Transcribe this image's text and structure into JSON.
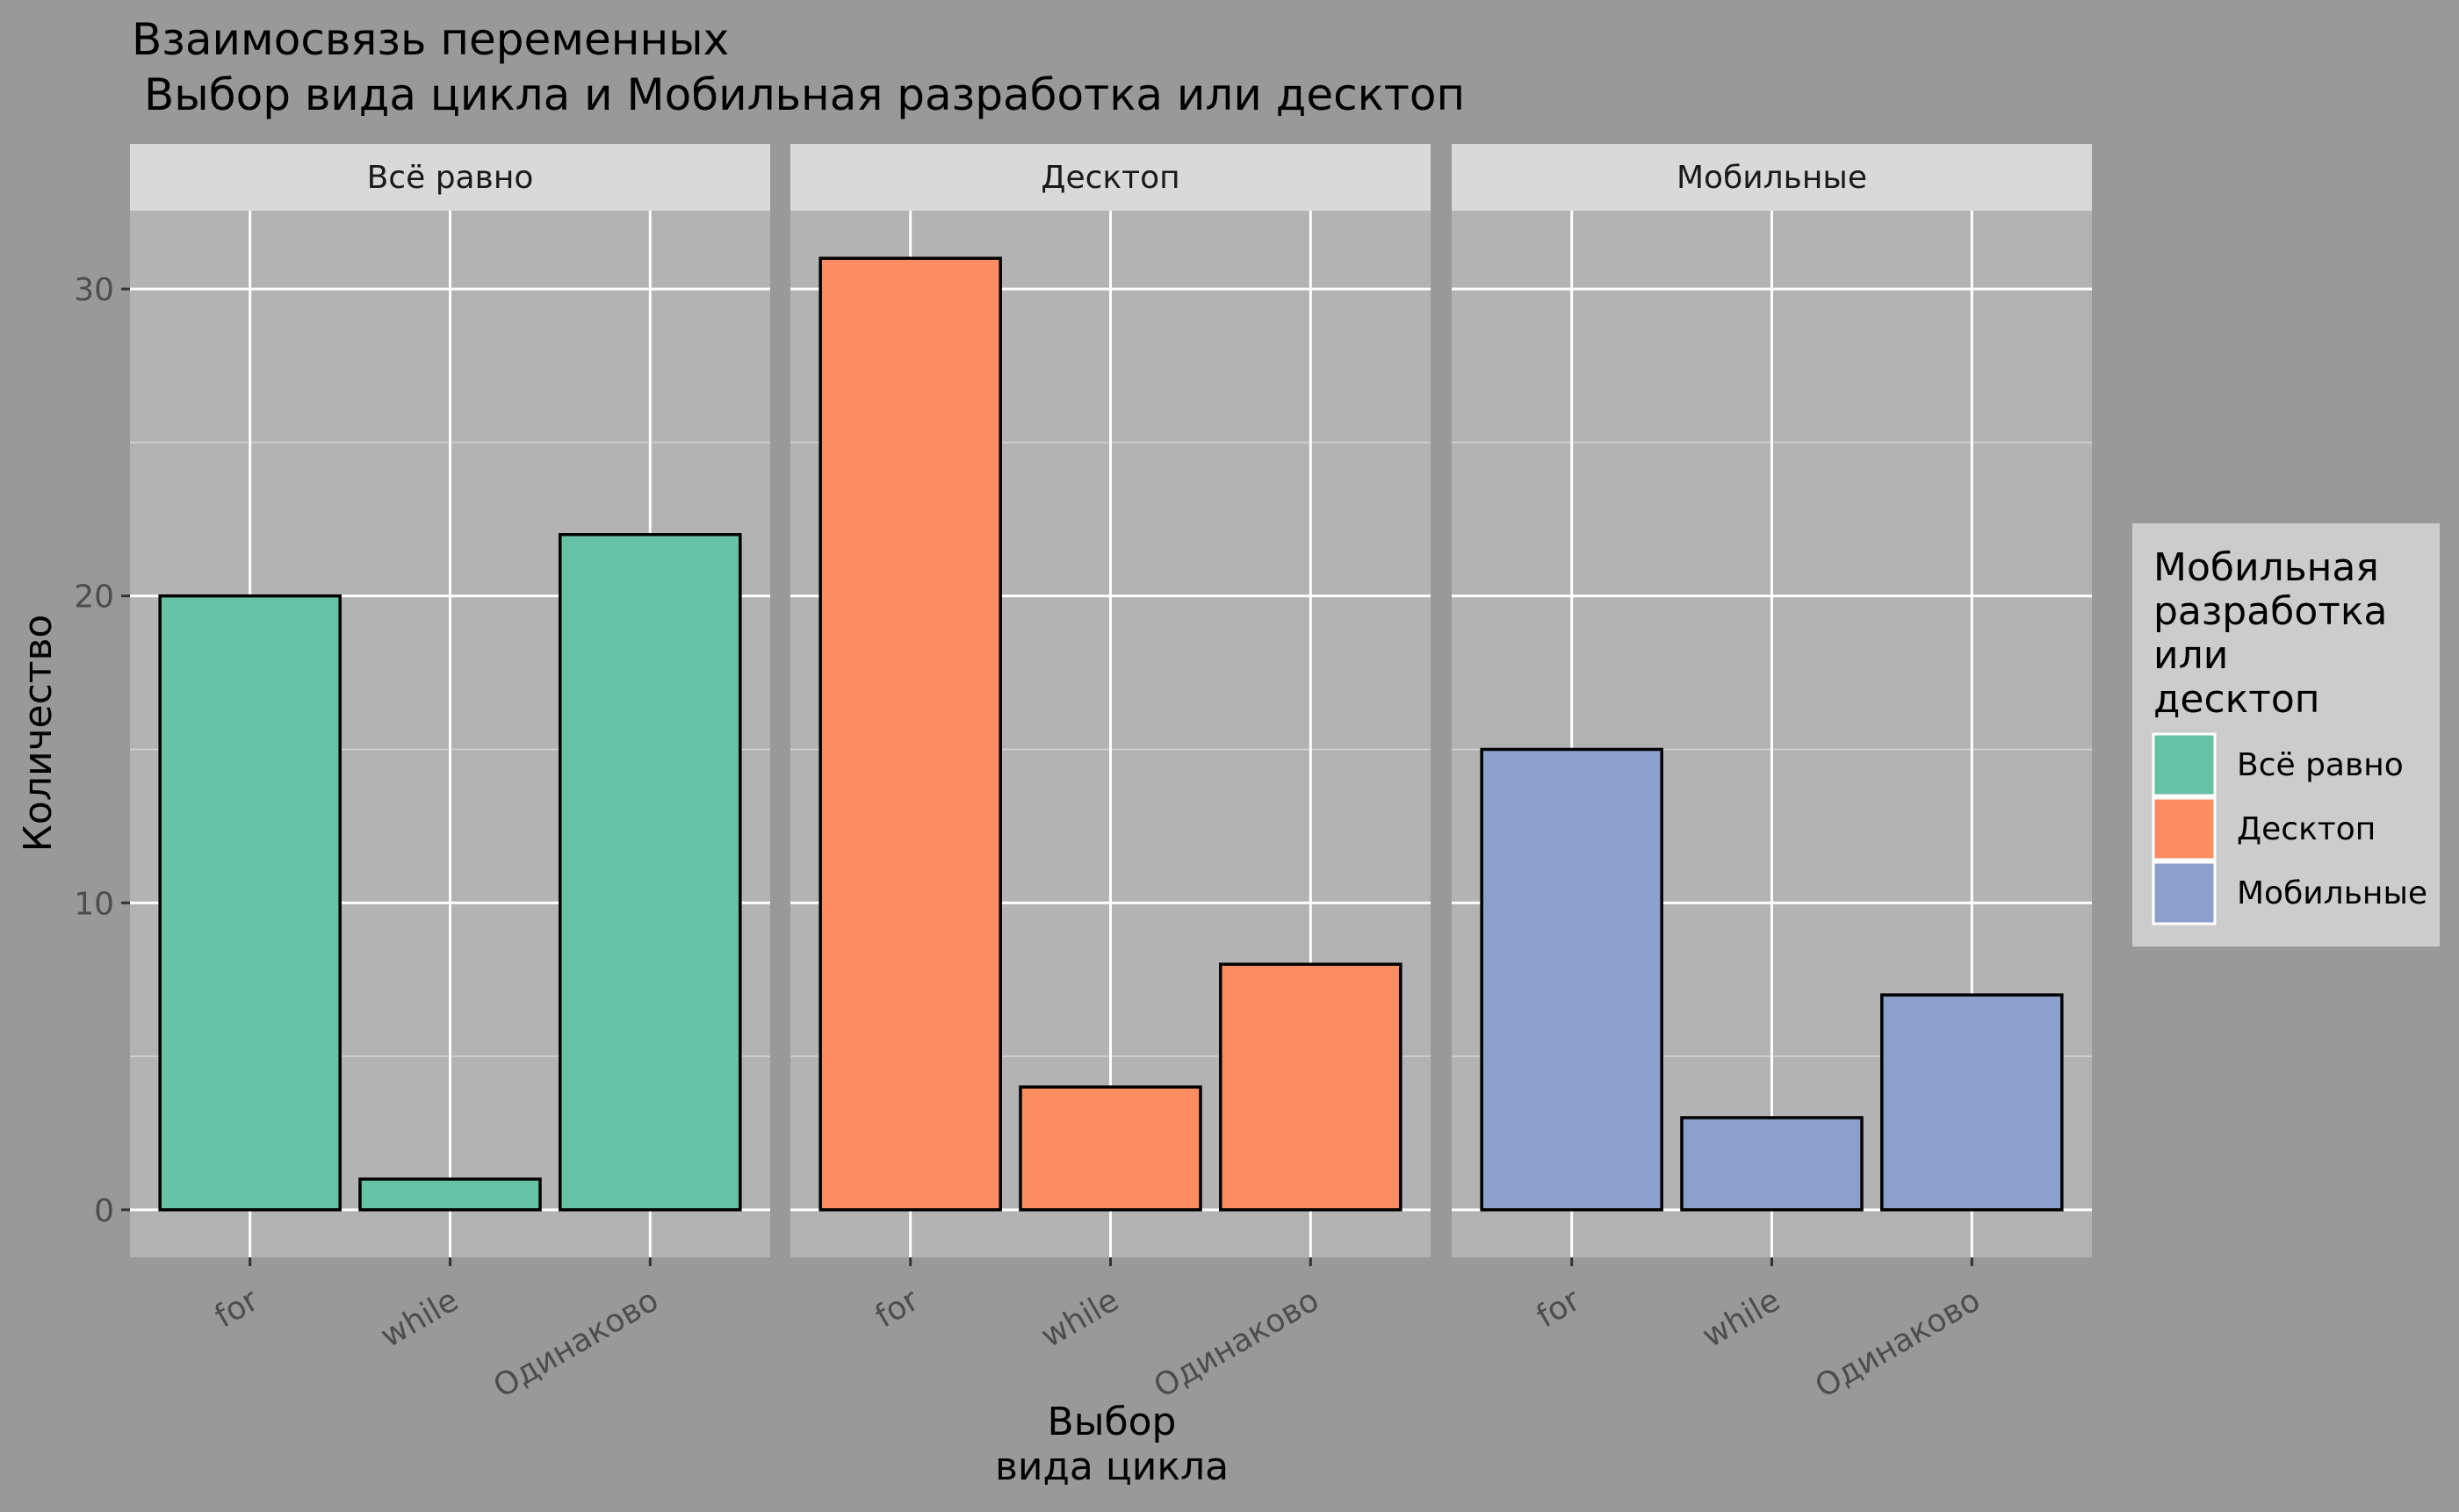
{
  "chart_data": {
    "type": "bar",
    "title": "Взаимосвязь переменных",
    "subtitle": "Выбор вида цикла и Мобильная разработка или десктоп",
    "xlabel": [
      "Выбор",
      "вида цикла"
    ],
    "ylabel": "Количество",
    "categories": [
      "for",
      "while",
      "Одинаково"
    ],
    "yticks": [
      0,
      10,
      20,
      30
    ],
    "ylim": [
      -1.55,
      32.55
    ],
    "grid": true,
    "legend": {
      "position": "right",
      "title": [
        "Мобильная",
        "разработка",
        "или",
        "десктоп"
      ],
      "entries": [
        "Всё равно",
        "Десктоп",
        "Мобильные"
      ]
    },
    "colors": {
      "Всё равно": "#66c2a5",
      "Десктоп": "#fc8d62",
      "Мобильные": "#8da0cb"
    },
    "series": [
      {
        "name": "Всё равно",
        "values": [
          20,
          1,
          22
        ]
      },
      {
        "name": "Десктоп",
        "values": [
          31,
          4,
          8
        ]
      },
      {
        "name": "Мобильные",
        "values": [
          15,
          3,
          7
        ]
      }
    ]
  }
}
